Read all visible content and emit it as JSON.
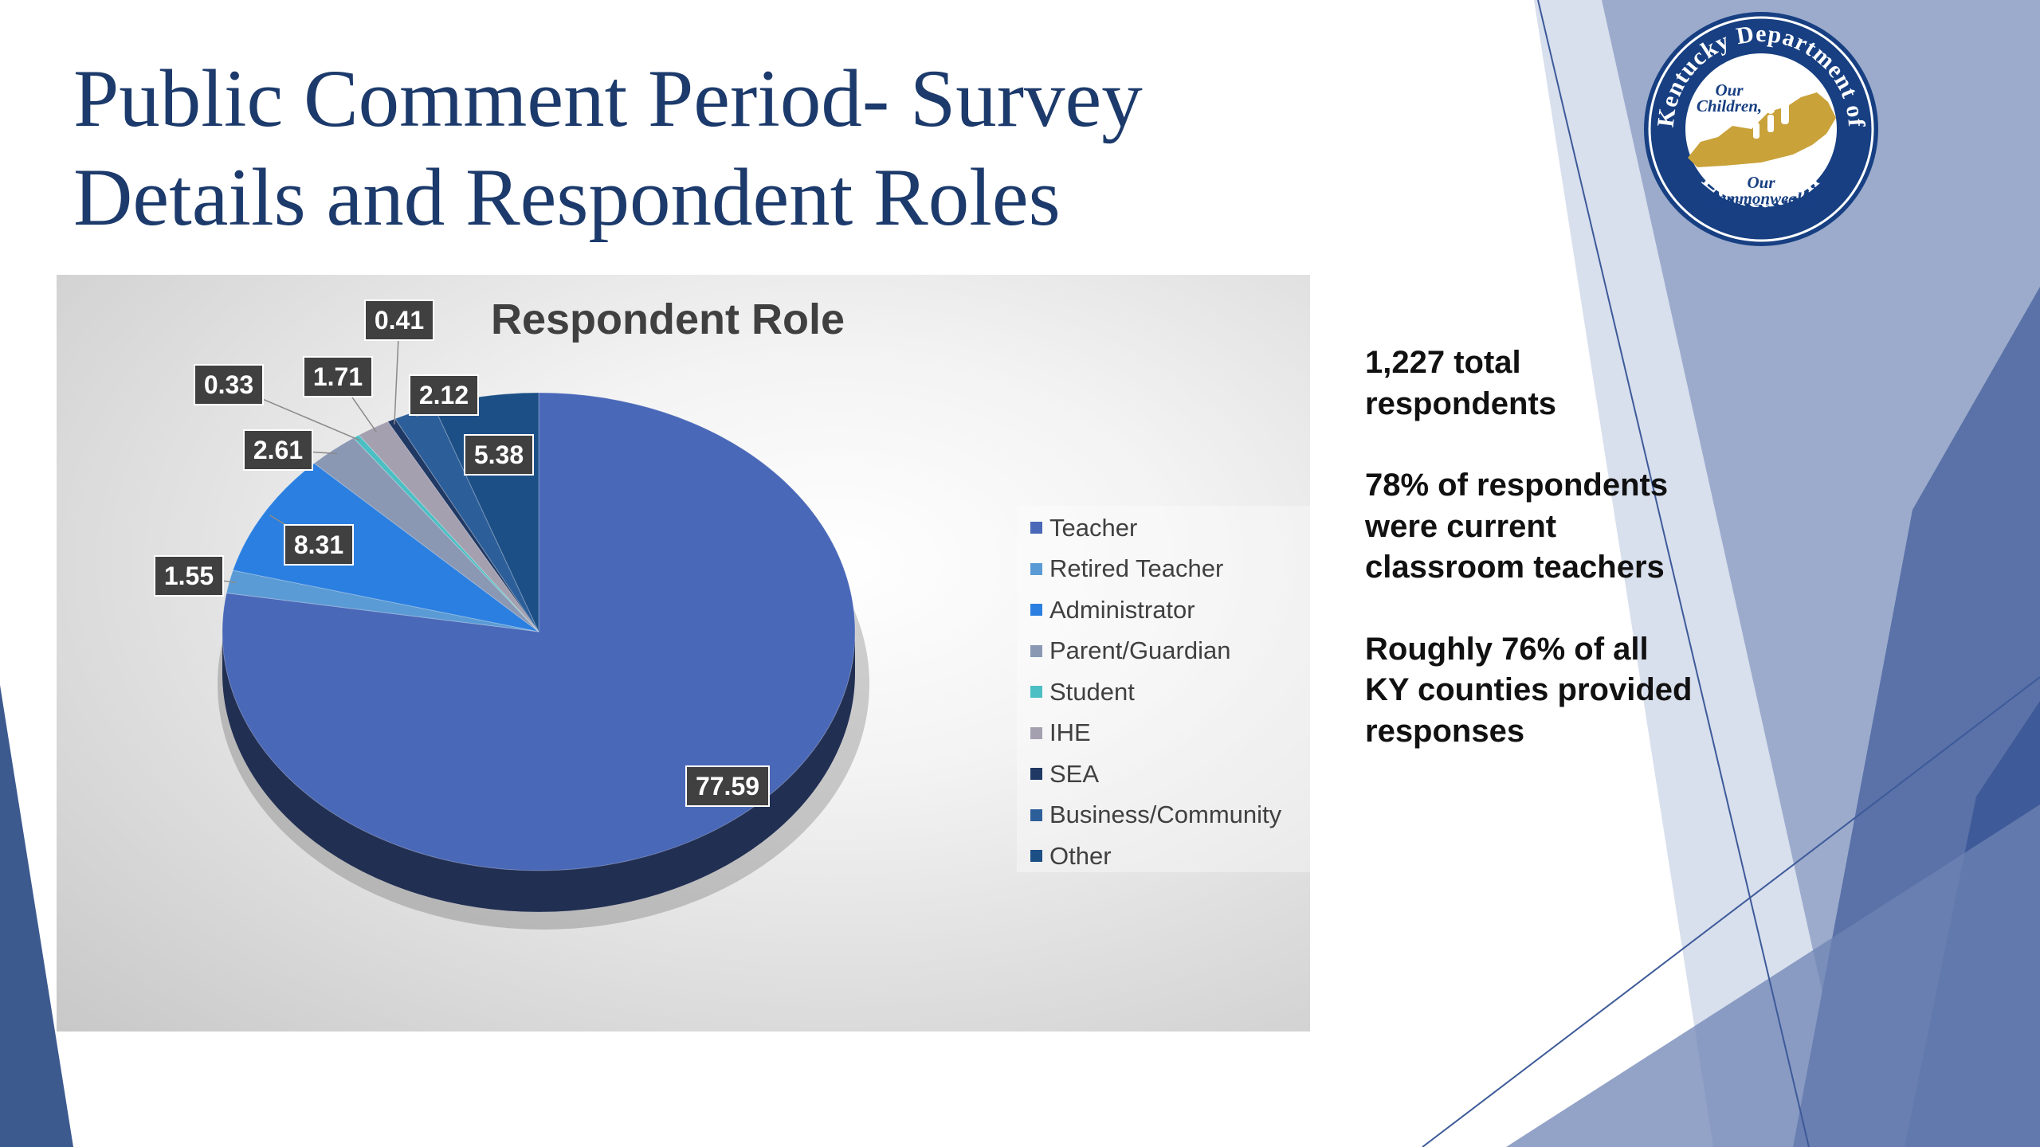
{
  "slide": {
    "title_line1": "Public Comment Period- Survey",
    "title_line2": "Details and Respondent Roles"
  },
  "sidebar_text": {
    "p1": "1,227 total respondents",
    "p2": "78% of respondents were current classroom teachers",
    "p3": "Roughly 76% of all KY counties provided responses"
  },
  "logo": {
    "ring_text_top": "Kentucky Department of",
    "ring_text_bottom": "Education",
    "inner_top_1": "Our",
    "inner_top_2": "Children,",
    "inner_bottom_1": "Our",
    "inner_bottom_2": "Commonwealth"
  },
  "colors": {
    "title": "#1c3a6b",
    "deco_blue": "#3d5a99",
    "logo_ring": "#173f82",
    "logo_gold": "#c9a23a"
  },
  "chart_data": {
    "type": "pie",
    "title": "Respondent Role",
    "legend_position": "right",
    "categories": [
      "Teacher",
      "Retired Teacher",
      "Administrator",
      "Parent/Guardian",
      "Student",
      "IHE",
      "SEA",
      "Business/Community",
      "Other"
    ],
    "values": [
      77.59,
      1.55,
      8.31,
      2.61,
      0.33,
      1.71,
      0.41,
      2.12,
      5.38
    ],
    "data_labels": [
      "77.59",
      "1.55",
      "8.31",
      "2.61",
      "0.33",
      "1.71",
      "0.41",
      "2.12",
      "5.38"
    ],
    "colors": [
      "#4a68b8",
      "#5b9bd5",
      "#2a7fe0",
      "#8a98b4",
      "#4bbfc3",
      "#a5a0b0",
      "#1f3864",
      "#2c5f9a",
      "#1c4f86"
    ]
  }
}
